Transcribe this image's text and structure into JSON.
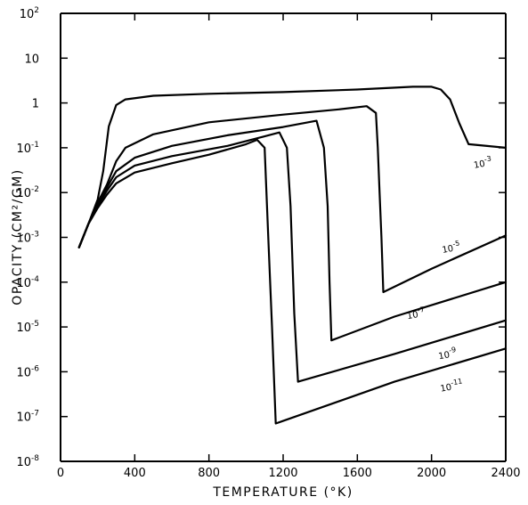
{
  "chart_data": {
    "type": "line",
    "xlabel": "TEMPERATURE (°K)",
    "ylabel": "OPACITY (CM²/GM)",
    "xlim": [
      0,
      2400
    ],
    "ylim": [
      1e-08,
      100
    ],
    "yscale": "log",
    "grid": false,
    "x_ticks": [
      {
        "value": 0,
        "label": "0"
      },
      {
        "value": 400,
        "label": "400"
      },
      {
        "value": 800,
        "label": "800"
      },
      {
        "value": 1200,
        "label": "1200"
      },
      {
        "value": 1600,
        "label": "1600"
      },
      {
        "value": 2000,
        "label": "2000"
      },
      {
        "value": 2400,
        "label": "2400"
      }
    ],
    "y_ticks": [
      {
        "value": 1e-08,
        "base": "10",
        "exp": "-8"
      },
      {
        "value": 1e-07,
        "base": "10",
        "exp": "-7"
      },
      {
        "value": 1e-06,
        "base": "10",
        "exp": "-6"
      },
      {
        "value": 1e-05,
        "base": "10",
        "exp": "-5"
      },
      {
        "value": 0.0001,
        "base": "10",
        "exp": "-4"
      },
      {
        "value": 0.001,
        "base": "10",
        "exp": "-3"
      },
      {
        "value": 0.01,
        "base": "10",
        "exp": "-2"
      },
      {
        "value": 0.1,
        "base": "10",
        "exp": "-1"
      },
      {
        "value": 1,
        "base": "1",
        "exp": ""
      },
      {
        "value": 10,
        "base": "10",
        "exp": ""
      },
      {
        "value": 100,
        "base": "10",
        "exp": "2"
      }
    ],
    "series": [
      {
        "label_base": "10",
        "label_exp": "-3",
        "label_at": [
          2230,
          0.035
        ],
        "points": [
          [
            100,
            0.0006
          ],
          [
            150,
            0.002
          ],
          [
            200,
            0.007
          ],
          [
            230,
            0.03
          ],
          [
            260,
            0.3
          ],
          [
            300,
            0.9
          ],
          [
            350,
            1.2
          ],
          [
            500,
            1.45
          ],
          [
            800,
            1.6
          ],
          [
            1200,
            1.75
          ],
          [
            1600,
            2.0
          ],
          [
            1900,
            2.3
          ],
          [
            2000,
            2.3
          ],
          [
            2050,
            2.0
          ],
          [
            2100,
            1.2
          ],
          [
            2150,
            0.35
          ],
          [
            2200,
            0.12
          ],
          [
            2400,
            0.1
          ]
        ]
      },
      {
        "label_base": "10",
        "label_exp": "-5",
        "label_at": [
          2060,
          0.00045
        ],
        "points": [
          [
            100,
            0.0006
          ],
          [
            150,
            0.002
          ],
          [
            200,
            0.006
          ],
          [
            250,
            0.015
          ],
          [
            300,
            0.05
          ],
          [
            350,
            0.1
          ],
          [
            500,
            0.2
          ],
          [
            800,
            0.37
          ],
          [
            1200,
            0.55
          ],
          [
            1500,
            0.72
          ],
          [
            1650,
            0.85
          ],
          [
            1700,
            0.6
          ],
          [
            1710,
            0.1
          ],
          [
            1720,
            0.01
          ],
          [
            1730,
            0.001
          ],
          [
            1740,
            6e-05
          ],
          [
            2000,
            0.0002
          ],
          [
            2400,
            0.0011
          ]
        ]
      },
      {
        "label_base": "10",
        "label_exp": "-7",
        "label_at": [
          1870,
          1.5e-05
        ],
        "points": [
          [
            100,
            0.0006
          ],
          [
            150,
            0.002
          ],
          [
            200,
            0.0055
          ],
          [
            250,
            0.013
          ],
          [
            300,
            0.03
          ],
          [
            400,
            0.06
          ],
          [
            600,
            0.11
          ],
          [
            900,
            0.19
          ],
          [
            1200,
            0.29
          ],
          [
            1380,
            0.4
          ],
          [
            1420,
            0.1
          ],
          [
            1440,
            0.005
          ],
          [
            1450,
            0.0001
          ],
          [
            1460,
            5e-06
          ],
          [
            1800,
            1.7e-05
          ],
          [
            2400,
            0.0001
          ]
        ]
      },
      {
        "label_base": "10",
        "label_exp": "-9",
        "label_at": [
          2040,
          1.9e-06
        ],
        "points": [
          [
            100,
            0.0006
          ],
          [
            150,
            0.002
          ],
          [
            200,
            0.005
          ],
          [
            250,
            0.011
          ],
          [
            300,
            0.022
          ],
          [
            400,
            0.04
          ],
          [
            600,
            0.065
          ],
          [
            900,
            0.11
          ],
          [
            1100,
            0.18
          ],
          [
            1180,
            0.22
          ],
          [
            1220,
            0.1
          ],
          [
            1240,
            0.005
          ],
          [
            1260,
            2e-05
          ],
          [
            1280,
            6e-07
          ],
          [
            1800,
            2.5e-06
          ],
          [
            2400,
            1.4e-05
          ]
        ]
      },
      {
        "label_base": "10",
        "label_exp": "-11",
        "label_at": [
          2050,
          3.6e-07
        ],
        "points": [
          [
            100,
            0.0006
          ],
          [
            150,
            0.002
          ],
          [
            200,
            0.0045
          ],
          [
            250,
            0.009
          ],
          [
            300,
            0.016
          ],
          [
            400,
            0.028
          ],
          [
            600,
            0.045
          ],
          [
            800,
            0.07
          ],
          [
            1000,
            0.12
          ],
          [
            1060,
            0.15
          ],
          [
            1100,
            0.1
          ],
          [
            1120,
            0.001
          ],
          [
            1140,
            1e-05
          ],
          [
            1160,
            7e-08
          ],
          [
            1200,
            8e-08
          ],
          [
            1800,
            6e-07
          ],
          [
            2400,
            3.3e-06
          ]
        ]
      }
    ]
  }
}
